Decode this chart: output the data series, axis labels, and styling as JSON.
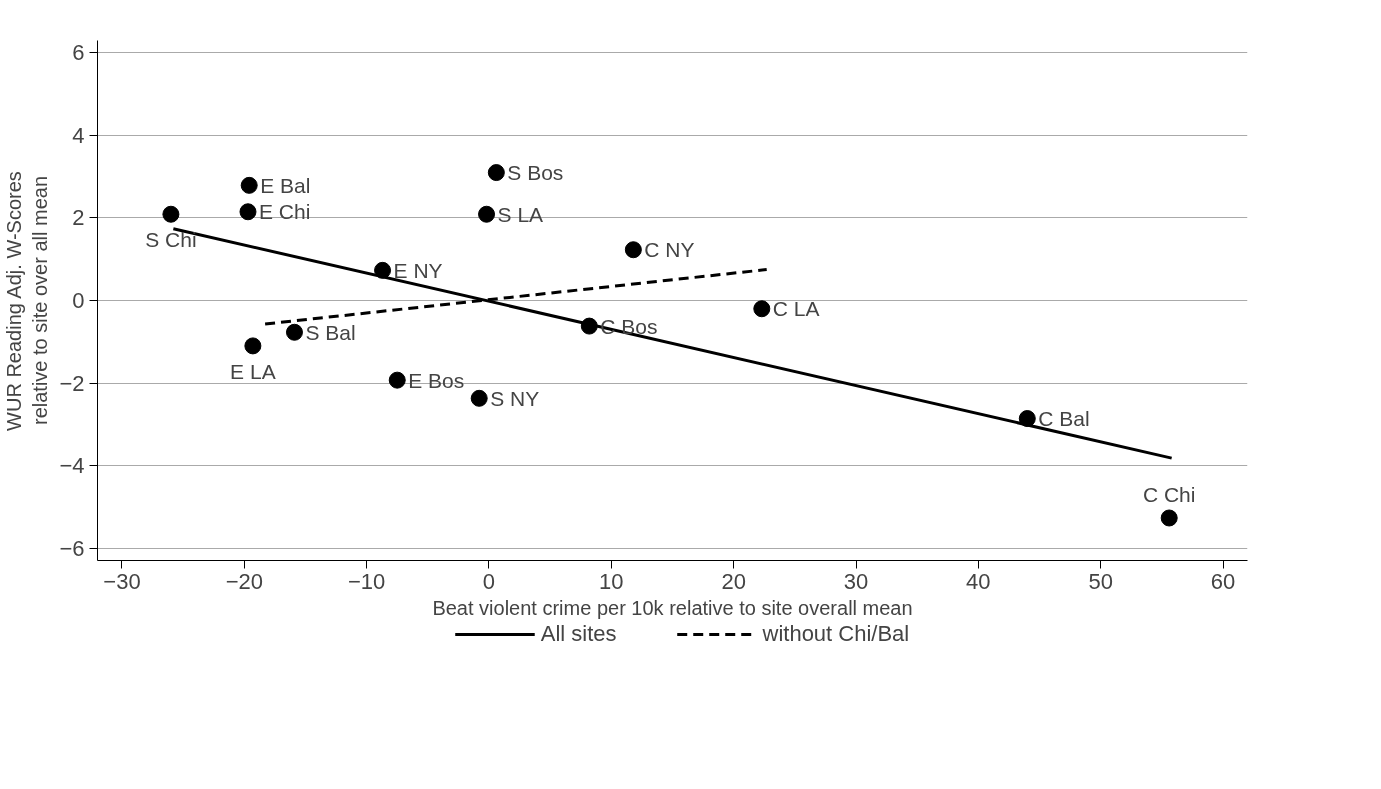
{
  "chart_data": {
    "type": "scatter",
    "xlabel": "Beat violent crime per 10k relative to site overall mean",
    "ylabel": "WUR Reading Adj. W-Scores\nrelative to site over all mean",
    "xlim": [
      -32,
      62
    ],
    "ylim": [
      -6.3,
      6.3
    ],
    "xticks": [
      -30,
      -20,
      -10,
      0,
      10,
      20,
      30,
      40,
      50,
      60
    ],
    "yticks": [
      -6,
      -4,
      -2,
      0,
      2,
      4,
      6
    ],
    "grid": "y",
    "legend": "bottom",
    "series": [
      {
        "color": "#000000",
        "marker": "circle",
        "x": [
          -26.0,
          -19.6,
          -19.7,
          0.6,
          -0.2,
          11.8,
          -8.7,
          22.3,
          8.2,
          -15.9,
          -19.3,
          -7.5,
          -0.8,
          44.0,
          55.6
        ],
        "values": [
          2.09,
          2.79,
          2.15,
          3.1,
          2.09,
          1.23,
          0.73,
          -0.2,
          -0.62,
          -0.77,
          -1.1,
          -1.93,
          -2.37,
          -2.86,
          -5.27
        ]
      },
      {
        "type": "line",
        "name": "All sites",
        "color": "#000000",
        "marker": "none",
        "line_style": "solid",
        "x": [
          -25.8,
          55.8
        ],
        "values": [
          1.74,
          -3.82
        ]
      },
      {
        "type": "line",
        "name": "without Chi/Bal",
        "color": "#000000",
        "marker": "none",
        "line_style": "dashed",
        "x": [
          -18.3,
          22.7
        ],
        "values": [
          -0.57,
          0.75
        ]
      }
    ],
    "annotations": [
      {
        "text": "S Chi",
        "x": -26.0,
        "y": 2.09
      },
      {
        "text": "E Bal",
        "x": -19.6,
        "y": 2.79
      },
      {
        "text": "E Chi",
        "x": -19.7,
        "y": 2.15
      },
      {
        "text": "S Bos",
        "x": 0.6,
        "y": 3.1
      },
      {
        "text": "S LA",
        "x": -0.2,
        "y": 2.09
      },
      {
        "text": "C NY",
        "x": 11.8,
        "y": 1.23
      },
      {
        "text": "E NY",
        "x": -8.7,
        "y": 0.73
      },
      {
        "text": "C LA",
        "x": 22.3,
        "y": -0.2
      },
      {
        "text": "C Bos",
        "x": 8.2,
        "y": -0.62
      },
      {
        "text": "S Bal",
        "x": -15.9,
        "y": -0.77
      },
      {
        "text": "E LA",
        "x": -19.3,
        "y": -1.1
      },
      {
        "text": "E Bos",
        "x": -7.5,
        "y": -1.93
      },
      {
        "text": "S NY",
        "x": -0.8,
        "y": -2.37
      },
      {
        "text": "C Bal",
        "x": 44.0,
        "y": -2.86
      },
      {
        "text": "C Chi",
        "x": 55.6,
        "y": -5.27
      }
    ]
  }
}
